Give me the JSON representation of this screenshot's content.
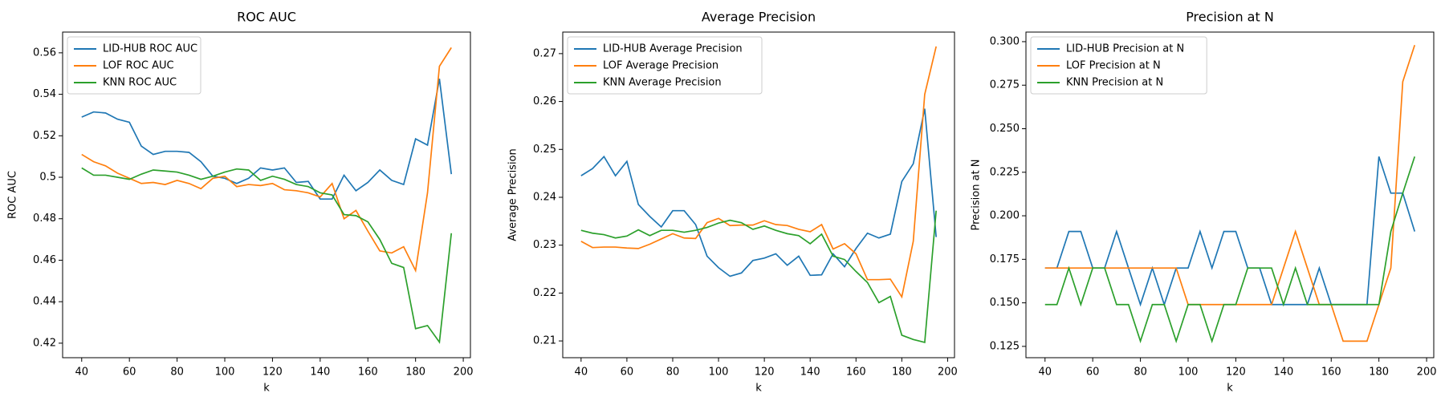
{
  "chart_data": [
    {
      "type": "line",
      "title": "ROC AUC",
      "x_label": "k",
      "y_label": "ROC AUC",
      "x": [
        40,
        45,
        50,
        55,
        60,
        65,
        70,
        75,
        80,
        85,
        90,
        95,
        100,
        105,
        110,
        115,
        120,
        125,
        130,
        135,
        140,
        145,
        150,
        155,
        160,
        165,
        170,
        175,
        180,
        185,
        190,
        195
      ],
      "series": [
        {
          "name": "LID-HUB ROC AUC",
          "color": "#1f77b4",
          "values": [
            0.529,
            0.5315,
            0.531,
            0.528,
            0.5265,
            0.515,
            0.511,
            0.5125,
            0.5125,
            0.512,
            0.5075,
            0.5005,
            0.4995,
            0.497,
            0.4995,
            0.5045,
            0.5035,
            0.5045,
            0.4975,
            0.498,
            0.4895,
            0.4895,
            0.501,
            0.4935,
            0.4975,
            0.5035,
            0.4985,
            0.4965,
            0.5185,
            0.5155,
            0.5475,
            0.5015
          ]
        },
        {
          "name": "LOF ROC AUC",
          "color": "#ff7f0e",
          "values": [
            0.511,
            0.5075,
            0.5055,
            0.502,
            0.4995,
            0.497,
            0.4975,
            0.4965,
            0.4985,
            0.497,
            0.4945,
            0.4995,
            0.5005,
            0.4955,
            0.4965,
            0.496,
            0.497,
            0.494,
            0.4935,
            0.4925,
            0.4905,
            0.497,
            0.48,
            0.484,
            0.474,
            0.4645,
            0.4635,
            0.4665,
            0.455,
            0.4925,
            0.5535,
            0.5625
          ]
        },
        {
          "name": "KNN ROC AUC",
          "color": "#2ca02c",
          "values": [
            0.5045,
            0.501,
            0.501,
            0.5,
            0.499,
            0.5015,
            0.5035,
            0.503,
            0.5025,
            0.501,
            0.499,
            0.5005,
            0.5025,
            0.504,
            0.5035,
            0.4985,
            0.5005,
            0.499,
            0.4965,
            0.4955,
            0.4925,
            0.4915,
            0.482,
            0.4815,
            0.4785,
            0.47,
            0.4585,
            0.4565,
            0.427,
            0.4285,
            0.4205,
            0.473
          ]
        }
      ],
      "xlim": [
        32,
        203
      ],
      "ylim": [
        0.413,
        0.57
      ],
      "xticks": [
        40,
        60,
        80,
        100,
        120,
        140,
        160,
        180,
        200
      ],
      "yticks": [
        0.42,
        0.44,
        0.46,
        0.48,
        0.5,
        0.52,
        0.54,
        0.56
      ],
      "legend": "upper left"
    },
    {
      "type": "line",
      "title": "Average Precision",
      "x_label": "k",
      "y_label": "Average Precision",
      "x": [
        40,
        45,
        50,
        55,
        60,
        65,
        70,
        75,
        80,
        85,
        90,
        95,
        100,
        105,
        110,
        115,
        120,
        125,
        130,
        135,
        140,
        145,
        150,
        155,
        160,
        165,
        170,
        175,
        180,
        185,
        190,
        195
      ],
      "series": [
        {
          "name": "LID-HUB Average Precision",
          "color": "#1f77b4",
          "values": [
            0.2445,
            0.246,
            0.2485,
            0.2445,
            0.2475,
            0.2385,
            0.236,
            0.2338,
            0.2372,
            0.2372,
            0.2343,
            0.2277,
            0.2253,
            0.2235,
            0.2242,
            0.2268,
            0.2273,
            0.2282,
            0.2258,
            0.2277,
            0.2237,
            0.2238,
            0.2282,
            0.2255,
            0.2293,
            0.2325,
            0.2315,
            0.2323,
            0.2433,
            0.247,
            0.2585,
            0.2317
          ]
        },
        {
          "name": "LOF Average Precision",
          "color": "#ff7f0e",
          "values": [
            0.2308,
            0.2295,
            0.2296,
            0.2296,
            0.2294,
            0.2293,
            0.2302,
            0.2313,
            0.2324,
            0.2315,
            0.2314,
            0.2347,
            0.2356,
            0.2341,
            0.2342,
            0.2342,
            0.2351,
            0.2343,
            0.2341,
            0.2333,
            0.2328,
            0.2343,
            0.2292,
            0.2303,
            0.2282,
            0.2228,
            0.2228,
            0.2229,
            0.2192,
            0.2308,
            0.2615,
            0.2715
          ]
        },
        {
          "name": "KNN Average Precision",
          "color": "#2ca02c",
          "values": [
            0.2331,
            0.2325,
            0.2322,
            0.2315,
            0.2319,
            0.2332,
            0.232,
            0.2331,
            0.2331,
            0.2327,
            0.2331,
            0.2337,
            0.2346,
            0.2352,
            0.2347,
            0.2333,
            0.234,
            0.2331,
            0.2324,
            0.232,
            0.2303,
            0.2323,
            0.2277,
            0.227,
            0.2245,
            0.2222,
            0.218,
            0.2193,
            0.2112,
            0.2103,
            0.2097,
            0.2372
          ]
        }
      ],
      "xlim": [
        32,
        203
      ],
      "ylim": [
        0.2065,
        0.2745
      ],
      "xticks": [
        40,
        60,
        80,
        100,
        120,
        140,
        160,
        180,
        200
      ],
      "yticks": [
        0.21,
        0.22,
        0.23,
        0.24,
        0.25,
        0.26,
        0.27
      ],
      "legend": "upper left"
    },
    {
      "type": "line",
      "title": "Precision at N",
      "x_label": "k",
      "y_label": "Precision at N",
      "x": [
        40,
        45,
        50,
        55,
        60,
        65,
        70,
        75,
        80,
        85,
        90,
        95,
        100,
        105,
        110,
        115,
        120,
        125,
        130,
        135,
        140,
        145,
        150,
        155,
        160,
        165,
        170,
        175,
        180,
        185,
        190,
        195
      ],
      "series": [
        {
          "name": "LID-HUB Precision at N",
          "color": "#1f77b4",
          "values": [
            0.17,
            0.17,
            0.191,
            0.191,
            0.17,
            0.17,
            0.191,
            0.17,
            0.149,
            0.17,
            0.149,
            0.17,
            0.17,
            0.191,
            0.17,
            0.191,
            0.191,
            0.17,
            0.17,
            0.149,
            0.149,
            0.149,
            0.149,
            0.17,
            0.149,
            0.149,
            0.149,
            0.149,
            0.234,
            0.213,
            0.213,
            0.191
          ]
        },
        {
          "name": "LOF Precision at N",
          "color": "#ff7f0e",
          "values": [
            0.17,
            0.17,
            0.17,
            0.17,
            0.17,
            0.17,
            0.17,
            0.17,
            0.17,
            0.17,
            0.17,
            0.17,
            0.149,
            0.149,
            0.149,
            0.149,
            0.149,
            0.149,
            0.149,
            0.149,
            0.17,
            0.191,
            0.17,
            0.149,
            0.149,
            0.128,
            0.128,
            0.128,
            0.149,
            0.17,
            0.277,
            0.298
          ]
        },
        {
          "name": "KNN Precision at N",
          "color": "#2ca02c",
          "values": [
            0.149,
            0.149,
            0.17,
            0.149,
            0.17,
            0.17,
            0.149,
            0.149,
            0.128,
            0.149,
            0.149,
            0.128,
            0.149,
            0.149,
            0.128,
            0.149,
            0.149,
            0.17,
            0.17,
            0.17,
            0.149,
            0.17,
            0.149,
            0.149,
            0.149,
            0.149,
            0.149,
            0.149,
            0.149,
            0.191,
            0.213,
            0.234
          ]
        }
      ],
      "xlim": [
        32,
        203
      ],
      "ylim": [
        0.1185,
        0.3055
      ],
      "xticks": [
        40,
        60,
        80,
        100,
        120,
        140,
        160,
        180,
        200
      ],
      "yticks": [
        0.125,
        {
          "value": 0.15,
          "label": "0.150"
        },
        0.175,
        {
          "value": 0.2,
          "label": "0.200"
        },
        0.225,
        {
          "value": 0.25,
          "label": "0.250"
        },
        0.275,
        {
          "value": 0.3,
          "label": "0.300"
        }
      ],
      "legend": "upper left"
    }
  ]
}
